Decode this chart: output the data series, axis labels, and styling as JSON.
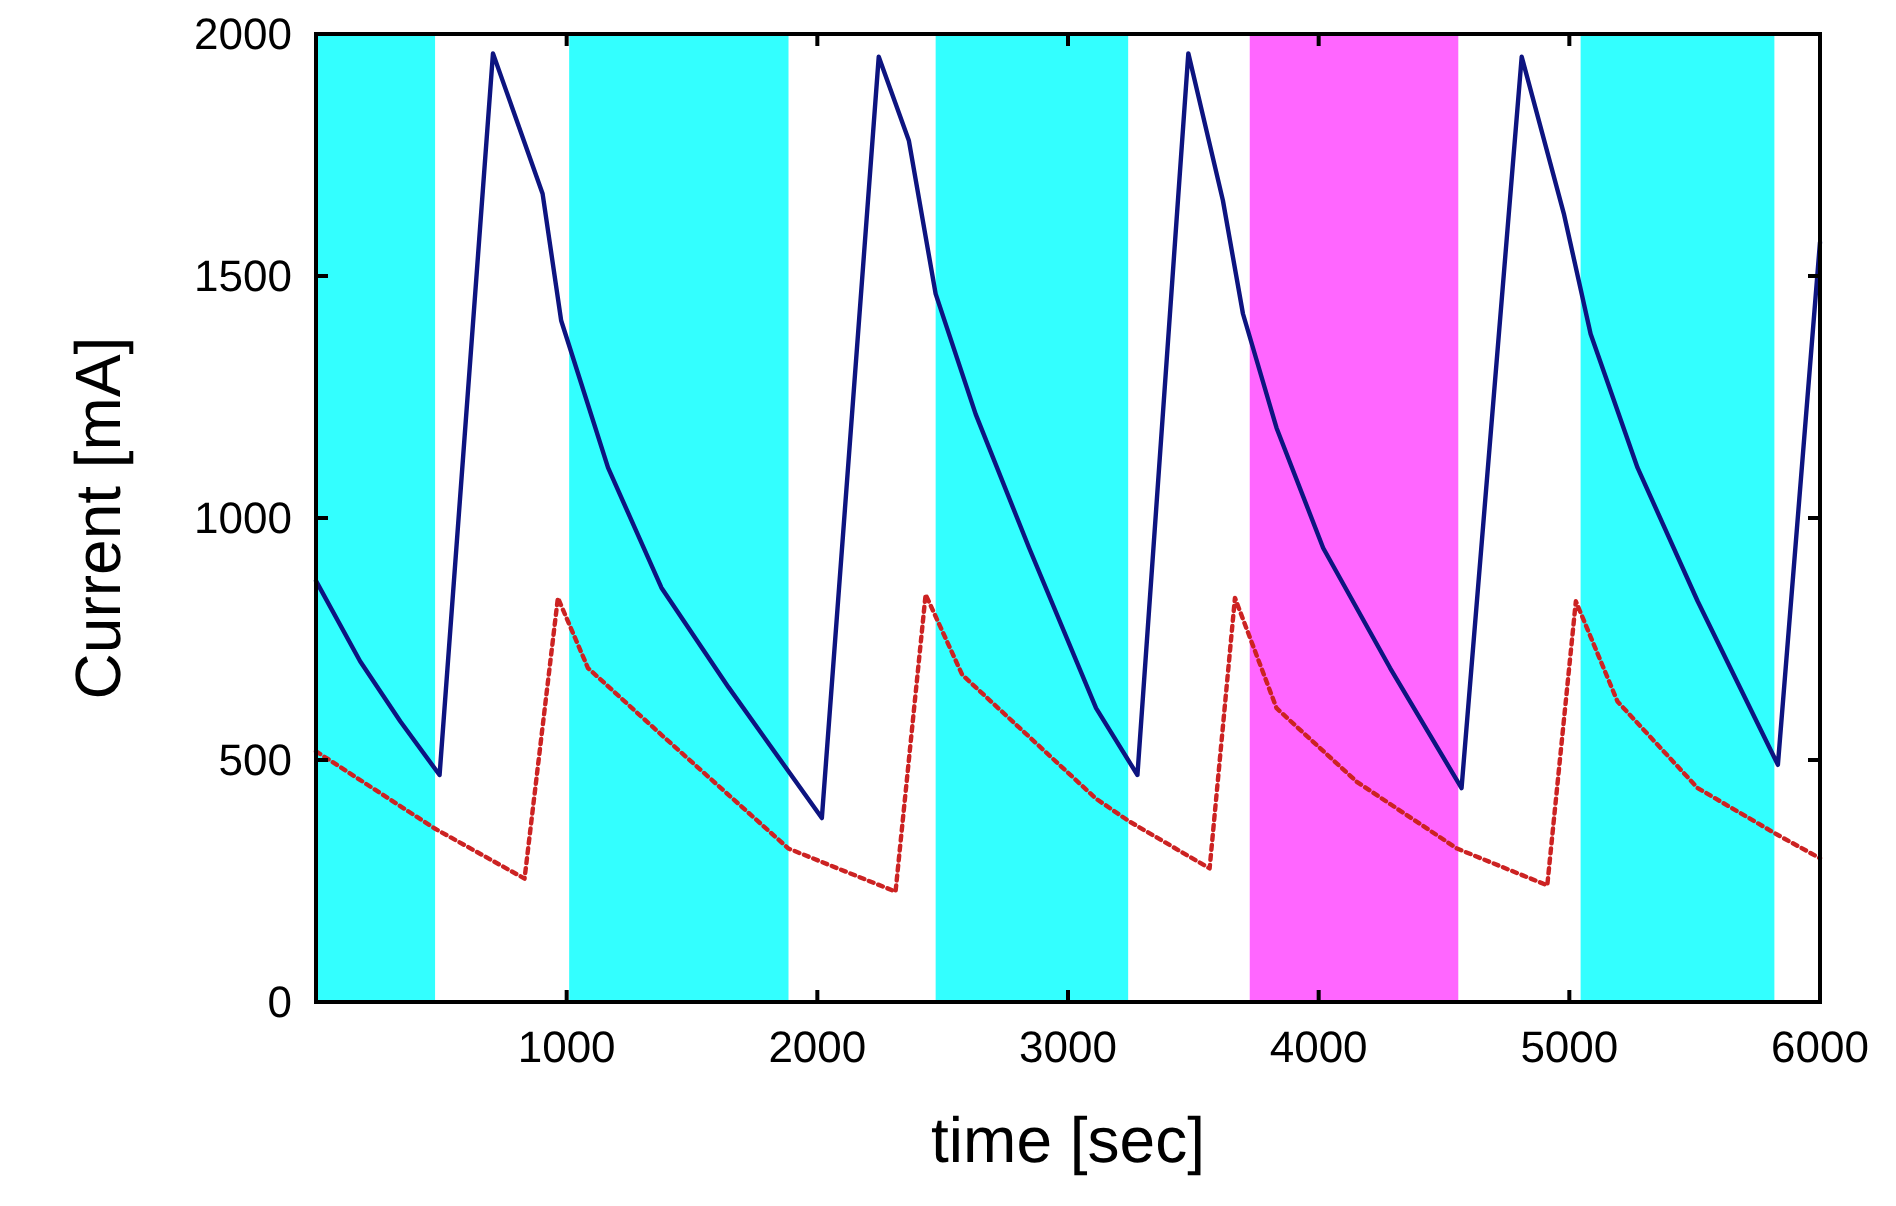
{
  "chart_data": {
    "type": "line",
    "xlabel": "time [sec]",
    "ylabel": "Current [mA]",
    "xlim": [
      0,
      6000
    ],
    "ylim": [
      0,
      2000
    ],
    "xticks": [
      1000,
      2000,
      3000,
      4000,
      5000,
      6000
    ],
    "yticks": [
      0,
      500,
      1000,
      1500,
      2000
    ],
    "grid": false,
    "marker": "none",
    "bands": [
      {
        "axis": "x",
        "from": 0,
        "to": 475,
        "color": "#33ffff"
      },
      {
        "axis": "x",
        "from": 1010,
        "to": 1885,
        "color": "#33ffff"
      },
      {
        "axis": "x",
        "from": 2472,
        "to": 3240,
        "color": "#33ffff"
      },
      {
        "axis": "x",
        "from": 3725,
        "to": 4557,
        "color": "#ff66ff"
      },
      {
        "axis": "x",
        "from": 5045,
        "to": 5818,
        "color": "#33ffff"
      }
    ],
    "series": [
      {
        "color": "#0d1480",
        "line_style": "solid",
        "x": [
          0,
          176,
          336,
          493,
          706,
          904,
          978,
          1165,
          1378,
          1646,
          2018,
          2245,
          2365,
          2472,
          2632,
          2845,
          3112,
          3277,
          3480,
          3618,
          3698,
          3832,
          4018,
          4285,
          4570,
          4810,
          4978,
          5085,
          5272,
          5512,
          5832,
          6000
        ],
        "values": [
          870,
          704,
          580,
          469,
          1960,
          1670,
          1408,
          1104,
          856,
          650,
          380,
          1953,
          1780,
          1463,
          1214,
          938,
          607,
          469,
          1960,
          1656,
          1422,
          1186,
          938,
          690,
          442,
          1953,
          1629,
          1380,
          1104,
          828,
          490,
          1570
        ]
      },
      {
        "color": "#cc2222",
        "line_style": "dotted",
        "x": [
          0,
          472,
          832,
          965,
          1085,
          1378,
          1885,
          2312,
          2432,
          2578,
          3112,
          3245,
          3565,
          3666,
          3832,
          4152,
          4552,
          4912,
          5026,
          5192,
          5512,
          5832,
          6000
        ],
        "values": [
          518,
          359,
          255,
          835,
          690,
          552,
          317,
          228,
          842,
          676,
          420,
          373,
          276,
          835,
          607,
          455,
          317,
          241,
          828,
          621,
          442,
          345,
          297
        ]
      }
    ]
  }
}
